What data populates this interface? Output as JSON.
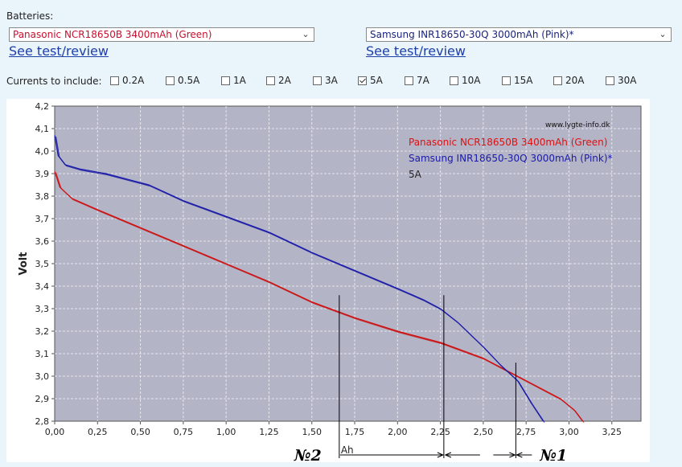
{
  "batteries_label": "Batteries:",
  "battery_left": {
    "selected": "Panasonic NCR18650B 3400mAh (Green)",
    "link": "See test/review"
  },
  "battery_right": {
    "selected": "Samsung INR18650-30Q 3000mAh (Pink)*",
    "link": "See test/review"
  },
  "currents_label": "Currents to include:",
  "currents": [
    {
      "label": "0.2A",
      "checked": false
    },
    {
      "label": "0.5A",
      "checked": false
    },
    {
      "label": "1A",
      "checked": false
    },
    {
      "label": "2A",
      "checked": false
    },
    {
      "label": "3A",
      "checked": false
    },
    {
      "label": "5A",
      "checked": true
    },
    {
      "label": "7A",
      "checked": false
    },
    {
      "label": "10A",
      "checked": false
    },
    {
      "label": "15A",
      "checked": false
    },
    {
      "label": "20A",
      "checked": false
    },
    {
      "label": "30A",
      "checked": false
    }
  ],
  "chart_data": {
    "type": "line",
    "watermark": "www.lygte-info.dk",
    "ylabel": "Volt",
    "xlabel": "Ah",
    "xlim": [
      0,
      3.42
    ],
    "ylim": [
      2.8,
      4.2
    ],
    "x_ticks": [
      "0,00",
      "0,25",
      "0,50",
      "0,75",
      "1,00",
      "1,25",
      "1,50",
      "1,75",
      "2,00",
      "2,25",
      "2,50",
      "2,75",
      "3,00",
      "3,25"
    ],
    "y_ticks": [
      "2,8",
      "2,9",
      "3,0",
      "3,1",
      "3,2",
      "3,3",
      "3,4",
      "3,5",
      "3,6",
      "3,7",
      "3,8",
      "3,9",
      "4,0",
      "4,1",
      "4,2"
    ],
    "grid": true,
    "legend": [
      "Panasonic NCR18650B 3400mAh (Green)",
      "Samsung INR18650-30Q 3000mAh (Pink)*",
      "5A"
    ],
    "legend_colors": [
      "#dd1111",
      "#1a1aa8",
      "#222222"
    ],
    "series": [
      {
        "name": "Panasonic NCR18650B 3400mAh (Green)",
        "color": "#cc1111",
        "x": [
          0.0,
          0.03,
          0.1,
          0.25,
          0.5,
          0.75,
          1.0,
          1.25,
          1.5,
          1.75,
          2.0,
          2.25,
          2.5,
          2.7,
          2.85,
          2.95,
          3.03,
          3.08
        ],
        "y": [
          3.91,
          3.84,
          3.79,
          3.74,
          3.66,
          3.58,
          3.5,
          3.42,
          3.33,
          3.26,
          3.2,
          3.15,
          3.08,
          3.0,
          2.94,
          2.9,
          2.85,
          2.8
        ]
      },
      {
        "name": "Samsung INR18650-30Q 3000mAh (Pink)*",
        "color": "#1a1aa8",
        "x": [
          0.0,
          0.02,
          0.06,
          0.15,
          0.3,
          0.45,
          0.55,
          0.75,
          1.0,
          1.25,
          1.5,
          1.75,
          2.0,
          2.15,
          2.25,
          2.35,
          2.5,
          2.6,
          2.7,
          2.78,
          2.85
        ],
        "y": [
          4.07,
          3.98,
          3.94,
          3.92,
          3.9,
          3.87,
          3.85,
          3.78,
          3.71,
          3.64,
          3.55,
          3.47,
          3.39,
          3.34,
          3.3,
          3.24,
          3.13,
          3.05,
          2.98,
          2.88,
          2.8
        ]
      }
    ],
    "annotations": [
      {
        "label": "№2",
        "x_value": 1.66
      },
      {
        "label": "№1",
        "x_value": 2.69
      }
    ],
    "marker_lines_x": [
      1.66,
      2.27,
      2.69
    ]
  }
}
